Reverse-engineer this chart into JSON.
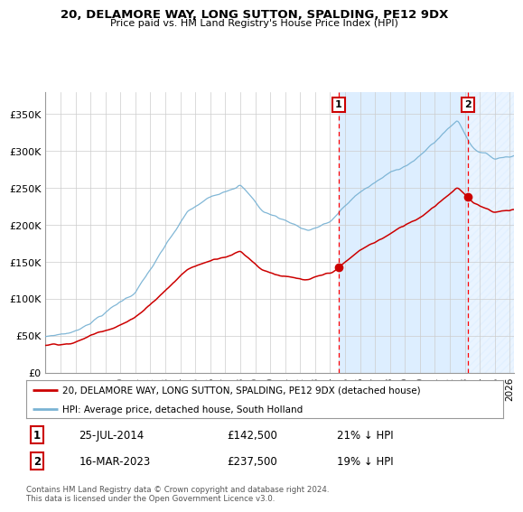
{
  "title": "20, DELAMORE WAY, LONG SUTTON, SPALDING, PE12 9DX",
  "subtitle": "Price paid vs. HM Land Registry's House Price Index (HPI)",
  "footnote": "Contains HM Land Registry data © Crown copyright and database right 2024.\nThis data is licensed under the Open Government Licence v3.0.",
  "legend_line1": "20, DELAMORE WAY, LONG SUTTON, SPALDING, PE12 9DX (detached house)",
  "legend_line2": "HPI: Average price, detached house, South Holland",
  "annotation1_date": "25-JUL-2014",
  "annotation1_price": "£142,500",
  "annotation1_hpi": "21% ↓ HPI",
  "annotation2_date": "16-MAR-2023",
  "annotation2_price": "£237,500",
  "annotation2_hpi": "19% ↓ HPI",
  "sale1_year": 2014.57,
  "sale1_value": 142500,
  "sale2_year": 2023.21,
  "sale2_value": 237500,
  "hpi_color": "#7ab3d4",
  "price_color": "#cc0000",
  "background_color": "#ffffff",
  "plot_bg_color": "#ffffff",
  "shaded_color": "#ddeeff",
  "grid_color": "#cccccc",
  "ylim": [
    0,
    380000
  ],
  "xlim_start": 1995.0,
  "xlim_end": 2026.3,
  "yticks": [
    0,
    50000,
    100000,
    150000,
    200000,
    250000,
    300000,
    350000
  ],
  "ytick_labels": [
    "£0",
    "£50K",
    "£100K",
    "£150K",
    "£200K",
    "£250K",
    "£300K",
    "£350K"
  ],
  "xticks": [
    1995,
    1996,
    1997,
    1998,
    1999,
    2000,
    2001,
    2002,
    2003,
    2004,
    2005,
    2006,
    2007,
    2008,
    2009,
    2010,
    2011,
    2012,
    2013,
    2014,
    2015,
    2016,
    2017,
    2018,
    2019,
    2020,
    2021,
    2022,
    2023,
    2024,
    2025,
    2026
  ]
}
